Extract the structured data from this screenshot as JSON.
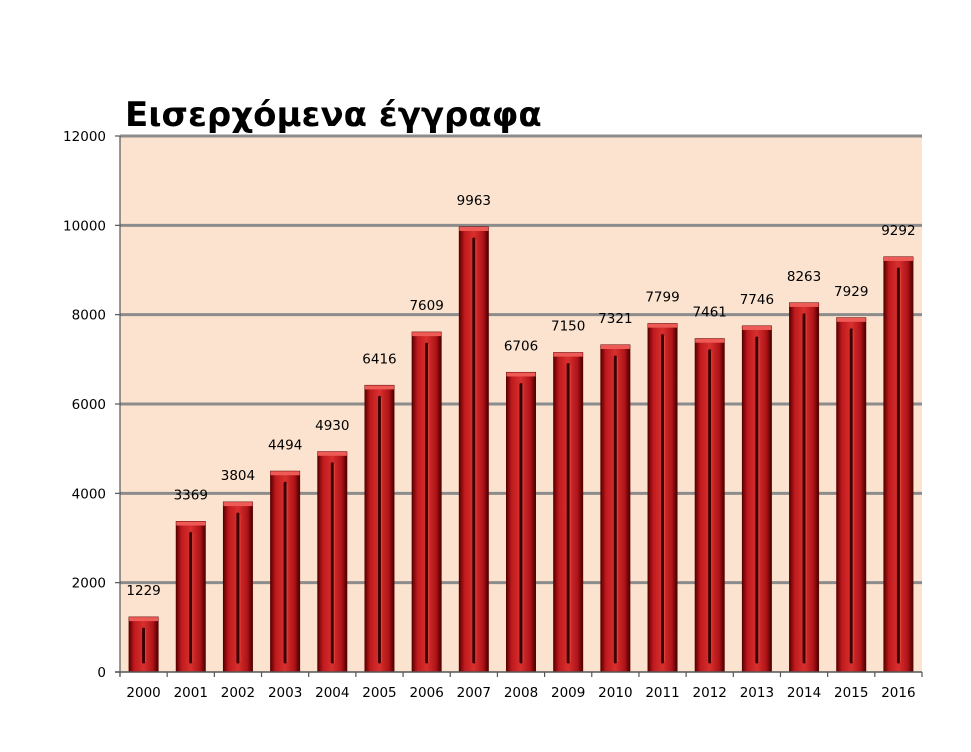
{
  "chart_data": {
    "type": "bar",
    "title": "Εισερχόμενα έγγραφα",
    "xlabel": "",
    "ylabel": "",
    "categories": [
      "2000",
      "2001",
      "2002",
      "2003",
      "2004",
      "2005",
      "2006",
      "2007",
      "2008",
      "2009",
      "2010",
      "2011",
      "2012",
      "2013",
      "2014",
      "2015",
      "2016"
    ],
    "values": [
      1229,
      3369,
      3804,
      4494,
      4930,
      6416,
      7609,
      9963,
      6706,
      7150,
      7321,
      7799,
      7461,
      7746,
      8263,
      7929,
      9292
    ],
    "ylim": [
      0,
      12000
    ],
    "yticks": [
      0,
      2000,
      4000,
      6000,
      8000,
      10000,
      12000
    ],
    "grid": true,
    "legend": "none",
    "colors": {
      "plot_background": "#fbe3cf",
      "bar": "#c01a1e",
      "bar_dark": "#5e0000",
      "bar_light": "#ee5a55",
      "gridline": "#8c8c8c"
    }
  }
}
